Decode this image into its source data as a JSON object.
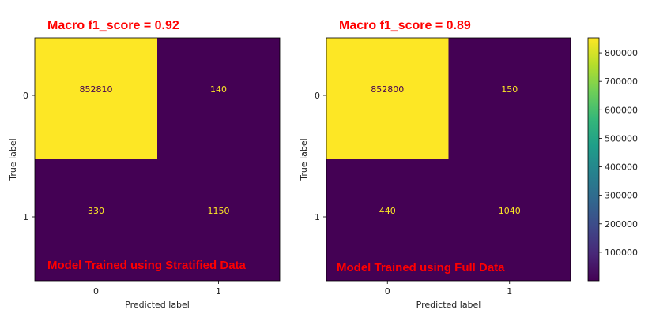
{
  "chart_data": [
    {
      "type": "heatmap",
      "title": "Macro f1_score = 0.92",
      "annotation": "Model Trained using Stratified Data",
      "xlabel": "Predicted label",
      "ylabel": "True label",
      "x_ticks": [
        "0",
        "1"
      ],
      "y_ticks": [
        "0",
        "1"
      ],
      "values": [
        [
          852810,
          140
        ],
        [
          330,
          1150
        ]
      ]
    },
    {
      "type": "heatmap",
      "title": "Macro f1_score = 0.89",
      "annotation": "Model Trained using Full Data",
      "xlabel": "Predicted label",
      "ylabel": "True label",
      "x_ticks": [
        "0",
        "1"
      ],
      "y_ticks": [
        "0",
        "1"
      ],
      "values": [
        [
          852800,
          150
        ],
        [
          440,
          1040
        ]
      ]
    }
  ],
  "colorbar": {
    "colormap": "viridis",
    "range": [
      0,
      852810
    ],
    "ticks": [
      "100000",
      "200000",
      "300000",
      "400000",
      "500000",
      "600000",
      "700000",
      "800000"
    ]
  },
  "colors": {
    "low": "#440154",
    "high": "#fde725",
    "text_on_low": "#fde725",
    "text_on_high": "#440154",
    "annotation": "#ff0000"
  }
}
